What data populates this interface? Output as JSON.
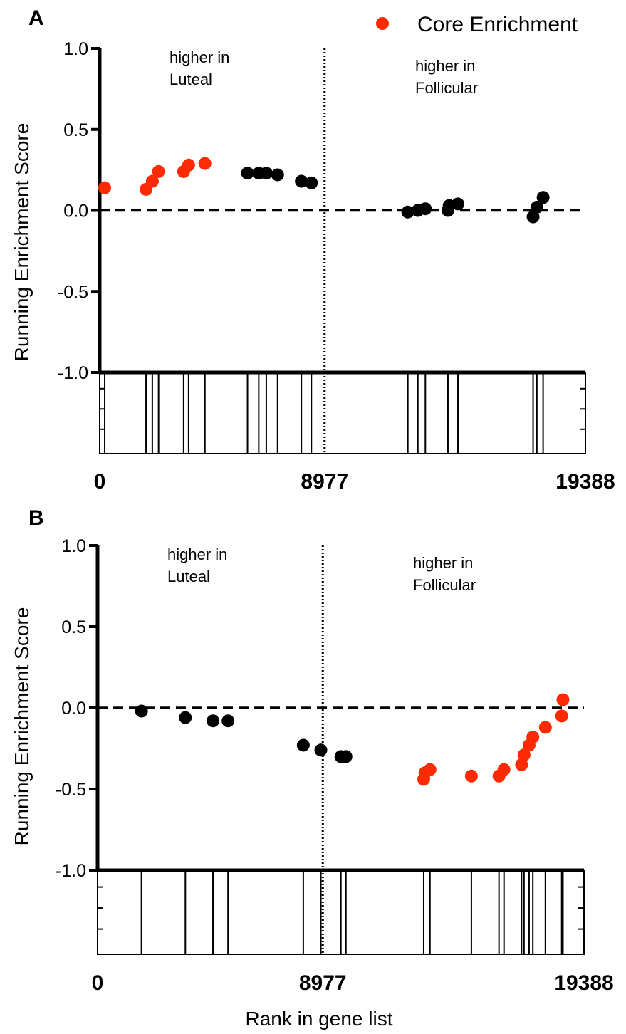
{
  "legend": {
    "label": "Core Enrichment",
    "core_color": "#ff2a00",
    "noncore_color": "#000000"
  },
  "xlabel": "Rank in gene list",
  "ylabel": "Running Enrichment Score",
  "chart_data": [
    {
      "type": "scatter",
      "panel": "A",
      "ylim": [
        -1.0,
        1.0
      ],
      "yticks": [
        1.0,
        0.5,
        0.0,
        -0.5,
        -1.0
      ],
      "ytick_labels": [
        "1.0",
        "0.5",
        "0.0",
        "-0.5",
        "-1.0"
      ],
      "xlim": [
        0,
        19388
      ],
      "xtick_labels": [
        "0",
        "8977",
        "19388"
      ],
      "divider_x": 8977,
      "baseline_y": 0.0,
      "region_labels": {
        "left": [
          "higher in",
          "Luteal"
        ],
        "right": [
          "higher in",
          "Follicular"
        ]
      },
      "points": [
        {
          "x": 200,
          "y": 0.14,
          "core": true
        },
        {
          "x": 1850,
          "y": 0.13,
          "core": true
        },
        {
          "x": 2100,
          "y": 0.18,
          "core": true
        },
        {
          "x": 2350,
          "y": 0.24,
          "core": true
        },
        {
          "x": 3350,
          "y": 0.24,
          "core": true
        },
        {
          "x": 3550,
          "y": 0.28,
          "core": true
        },
        {
          "x": 4200,
          "y": 0.29,
          "core": true
        },
        {
          "x": 5900,
          "y": 0.23,
          "core": false
        },
        {
          "x": 6350,
          "y": 0.23,
          "core": false
        },
        {
          "x": 6650,
          "y": 0.23,
          "core": false
        },
        {
          "x": 7100,
          "y": 0.22,
          "core": false
        },
        {
          "x": 8050,
          "y": 0.18,
          "core": false
        },
        {
          "x": 8450,
          "y": 0.17,
          "core": false
        },
        {
          "x": 12300,
          "y": -0.01,
          "core": false
        },
        {
          "x": 12700,
          "y": 0.0,
          "core": false
        },
        {
          "x": 13000,
          "y": 0.01,
          "core": false
        },
        {
          "x": 13900,
          "y": 0.0,
          "core": false
        },
        {
          "x": 13950,
          "y": 0.03,
          "core": false
        },
        {
          "x": 14300,
          "y": 0.04,
          "core": false
        },
        {
          "x": 17300,
          "y": -0.04,
          "core": false
        },
        {
          "x": 17450,
          "y": 0.02,
          "core": false
        },
        {
          "x": 17700,
          "y": 0.08,
          "core": false
        }
      ],
      "rug": [
        200,
        1850,
        2100,
        2350,
        3350,
        3550,
        4200,
        5900,
        6350,
        6650,
        7100,
        8050,
        8450,
        12300,
        12700,
        13000,
        13900,
        14300,
        17300,
        17450,
        17700
      ]
    },
    {
      "type": "scatter",
      "panel": "B",
      "ylim": [
        -1.0,
        1.0
      ],
      "yticks": [
        1.0,
        0.5,
        0.0,
        -0.5,
        -1.0
      ],
      "ytick_labels": [
        "1.0",
        "0.5",
        "0.0",
        "-0.5",
        "-1.0"
      ],
      "xlim": [
        0,
        19388
      ],
      "xtick_labels": [
        "0",
        "8977",
        "19388"
      ],
      "divider_x": 8977,
      "baseline_y": 0.0,
      "region_labels": {
        "left": [
          "higher in",
          "Luteal"
        ],
        "right": [
          "higher in",
          "Follicular"
        ]
      },
      "points": [
        {
          "x": 1750,
          "y": -0.02,
          "core": false
        },
        {
          "x": 3500,
          "y": -0.06,
          "core": false
        },
        {
          "x": 4600,
          "y": -0.08,
          "core": false
        },
        {
          "x": 5200,
          "y": -0.08,
          "core": false
        },
        {
          "x": 8200,
          "y": -0.23,
          "core": false
        },
        {
          "x": 8900,
          "y": -0.26,
          "core": false
        },
        {
          "x": 9700,
          "y": -0.3,
          "core": false
        },
        {
          "x": 9900,
          "y": -0.3,
          "core": false
        },
        {
          "x": 13000,
          "y": -0.44,
          "core": true
        },
        {
          "x": 13050,
          "y": -0.4,
          "core": true
        },
        {
          "x": 13250,
          "y": -0.38,
          "core": true
        },
        {
          "x": 14900,
          "y": -0.42,
          "core": true
        },
        {
          "x": 16000,
          "y": -0.42,
          "core": true
        },
        {
          "x": 16200,
          "y": -0.38,
          "core": true
        },
        {
          "x": 16900,
          "y": -0.35,
          "core": true
        },
        {
          "x": 17000,
          "y": -0.29,
          "core": true
        },
        {
          "x": 17200,
          "y": -0.23,
          "core": true
        },
        {
          "x": 17350,
          "y": -0.18,
          "core": true
        },
        {
          "x": 17850,
          "y": -0.12,
          "core": true
        },
        {
          "x": 18500,
          "y": -0.05,
          "core": true
        },
        {
          "x": 18550,
          "y": 0.05,
          "core": true
        }
      ],
      "rug": [
        1750,
        3500,
        4600,
        5200,
        8200,
        8900,
        9700,
        9900,
        13000,
        13250,
        14900,
        16000,
        16200,
        16900,
        17000,
        17200,
        17350,
        17850,
        18500,
        18550
      ]
    }
  ]
}
